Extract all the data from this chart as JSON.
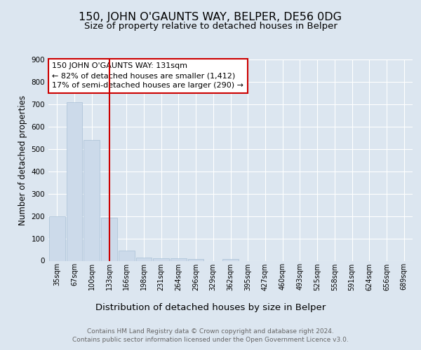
{
  "title": "150, JOHN O'GAUNTS WAY, BELPER, DE56 0DG",
  "subtitle": "Size of property relative to detached houses in Belper",
  "xlabel": "Distribution of detached houses by size in Belper",
  "ylabel": "Number of detached properties",
  "categories": [
    "35sqm",
    "67sqm",
    "100sqm",
    "133sqm",
    "166sqm",
    "198sqm",
    "231sqm",
    "264sqm",
    "296sqm",
    "329sqm",
    "362sqm",
    "395sqm",
    "427sqm",
    "460sqm",
    "493sqm",
    "525sqm",
    "558sqm",
    "591sqm",
    "624sqm",
    "656sqm",
    "689sqm"
  ],
  "values": [
    200,
    710,
    540,
    193,
    45,
    13,
    11,
    11,
    8,
    0,
    7,
    0,
    0,
    0,
    0,
    0,
    0,
    0,
    0,
    0,
    0
  ],
  "bar_color": "#ccdaea",
  "bar_edge_color": "#a8c0d6",
  "highlight_bar_index": 3,
  "highlight_color": "#cc0000",
  "annotation_box_text": "150 JOHN O'GAUNTS WAY: 131sqm\n← 82% of detached houses are smaller (1,412)\n17% of semi-detached houses are larger (290) →",
  "annotation_box_color": "#cc0000",
  "ylim": [
    0,
    900
  ],
  "yticks": [
    0,
    100,
    200,
    300,
    400,
    500,
    600,
    700,
    800,
    900
  ],
  "bg_color": "#dce6f0",
  "plot_bg_color": "#dce6f0",
  "grid_color": "#ffffff",
  "footer": "Contains HM Land Registry data © Crown copyright and database right 2024.\nContains public sector information licensed under the Open Government Licence v3.0.",
  "title_fontsize": 11.5,
  "subtitle_fontsize": 9.5,
  "xlabel_fontsize": 9.5,
  "ylabel_fontsize": 8.5,
  "annotation_fontsize": 8,
  "tick_fontsize": 7,
  "ytick_fontsize": 7.5,
  "footer_fontsize": 6.5
}
